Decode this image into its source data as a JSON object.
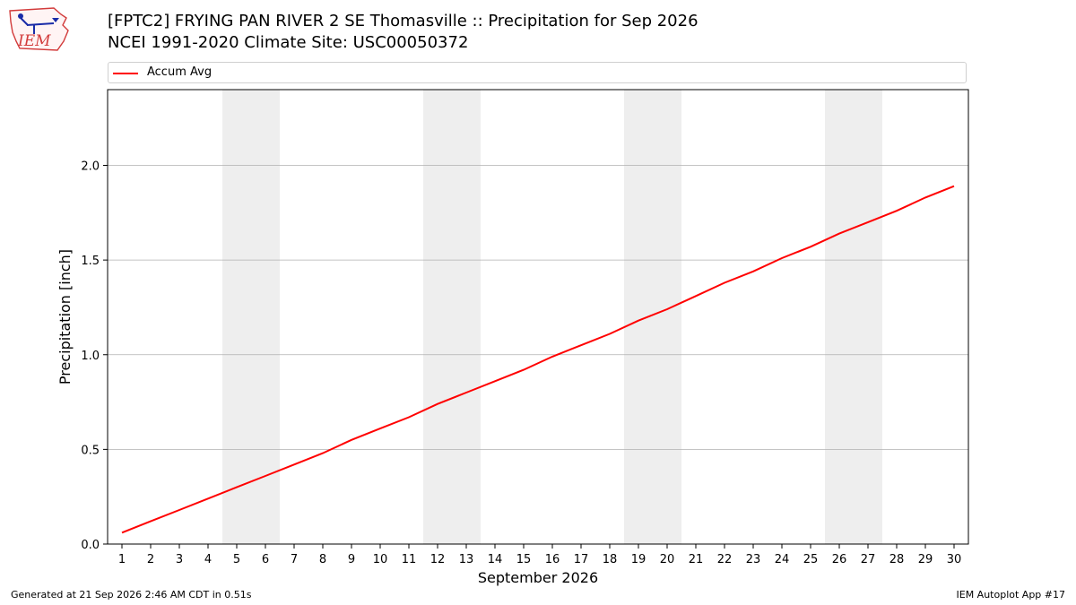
{
  "header": {
    "title_line1": "[FPTC2] FRYING PAN RIVER 2 SE Thomasville :: Precipitation for Sep 2026",
    "title_line2": "NCEI 1991-2020 Climate Site: USC00050372"
  },
  "logo": {
    "text": "IEM",
    "icon": "iem-logo-icon"
  },
  "footer": {
    "generated": "Generated at 21 Sep 2026 2:46 AM CDT in 0.51s",
    "app": "IEM Autoplot App #17"
  },
  "chart_data": {
    "type": "line",
    "xlabel": "September 2026",
    "ylabel": "Precipitation [inch]",
    "ylim": [
      0,
      2.4
    ],
    "yticks": [
      0.0,
      0.5,
      1.0,
      1.5,
      2.0
    ],
    "ytick_labels": [
      "0.0",
      "0.5",
      "1.0",
      "1.5",
      "2.0"
    ],
    "xlim": [
      0.5,
      30.5
    ],
    "x": [
      1,
      2,
      3,
      4,
      5,
      6,
      7,
      8,
      9,
      10,
      11,
      12,
      13,
      14,
      15,
      16,
      17,
      18,
      19,
      20,
      21,
      22,
      23,
      24,
      25,
      26,
      27,
      28,
      29,
      30
    ],
    "grid": "horizontal",
    "legend": "top",
    "weekend_bands": [
      [
        5,
        6
      ],
      [
        12,
        13
      ],
      [
        19,
        20
      ],
      [
        26,
        27
      ]
    ],
    "band_color": "#eeeeee",
    "series": [
      {
        "name": "Accum Avg",
        "color": "#ff0000",
        "values": [
          0.06,
          0.12,
          0.18,
          0.24,
          0.3,
          0.36,
          0.42,
          0.48,
          0.55,
          0.61,
          0.67,
          0.74,
          0.8,
          0.86,
          0.92,
          0.99,
          1.05,
          1.11,
          1.18,
          1.24,
          1.31,
          1.38,
          1.44,
          1.51,
          1.57,
          1.64,
          1.7,
          1.76,
          1.83,
          1.89
        ]
      }
    ]
  }
}
